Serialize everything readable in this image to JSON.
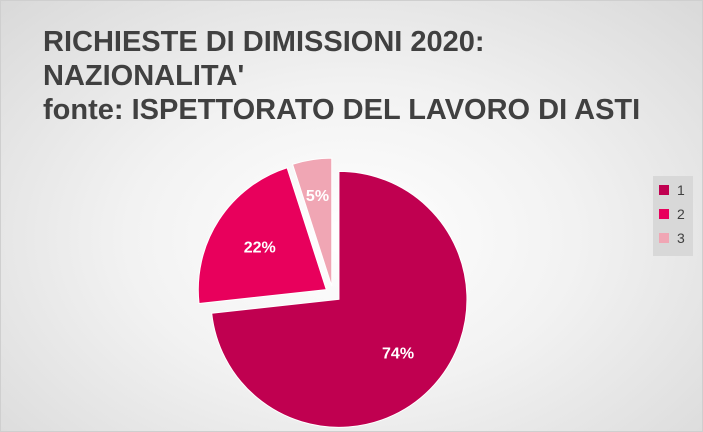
{
  "chart_data": {
    "type": "pie",
    "title_lines": [
      "RICHIESTE DI DIMISSIONI 2020:",
      "NAZIONALITA'",
      "fonte: ISPETTORATO DEL LAVORO DI ASTI"
    ],
    "categories": [
      "1",
      "2",
      "3"
    ],
    "values": [
      74,
      22,
      5
    ],
    "data_labels": [
      "74%",
      "22%",
      "5%"
    ],
    "colors": [
      "#c00050",
      "#e8005c",
      "#f0a6b4"
    ],
    "exploded": true,
    "legend_position": "right"
  }
}
